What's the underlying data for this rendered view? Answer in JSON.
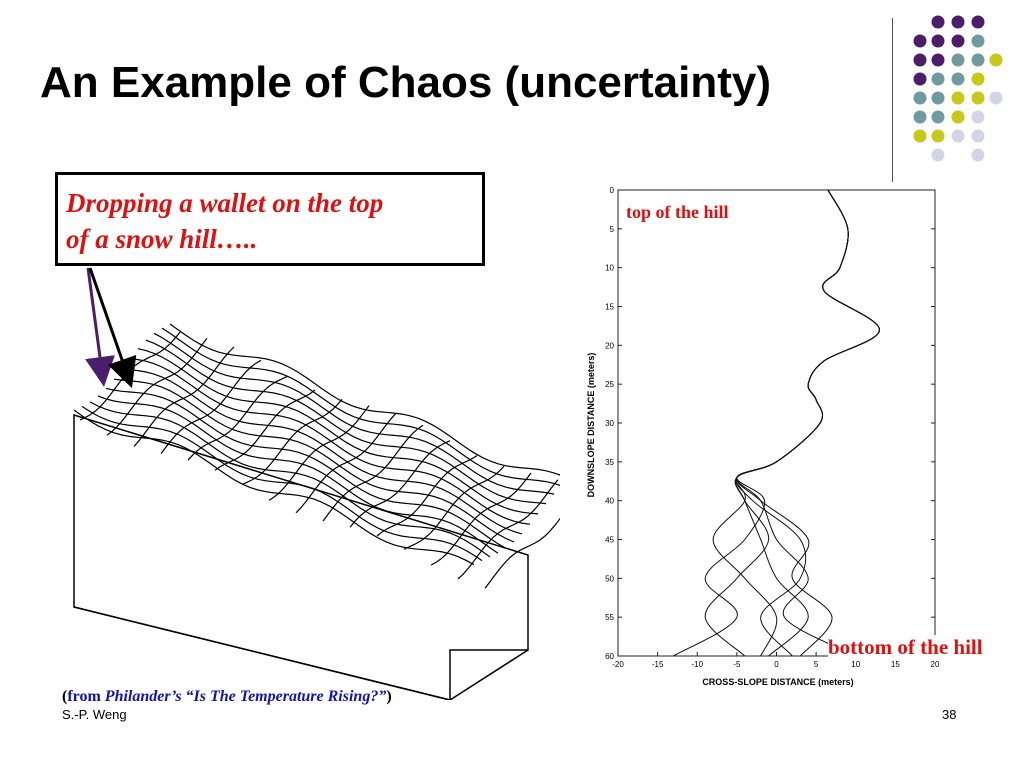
{
  "slide": {
    "title": "An Example of Chaos (uncertainty)",
    "callout_line1": "Dropping a wallet on the top",
    "callout_line2": "of a snow hill…..",
    "source_open": "(",
    "source_from": "from ",
    "source_work": "Philander’s “Is The Temperature Rising?”",
    "source_close": ")",
    "footer_author": "S.-P. Weng",
    "page_number": "38"
  },
  "colors": {
    "purple": "#4b1d6b",
    "teal": "#6f9aa0",
    "yellow": "#c8c818",
    "lavender": "#d4d4e6",
    "accent_red": "#e01010",
    "source_blue": "#1010c0"
  },
  "chart_data": {
    "type": "line",
    "xlabel": "CROSS-SLOPE DISTANCE (meters)",
    "ylabel": "DOWNSLOPE DISTANCE (meters)",
    "xlim": [
      -20,
      20
    ],
    "ylim": [
      60,
      0
    ],
    "x_ticks": [
      -20,
      -15,
      -10,
      -5,
      0,
      5,
      10,
      15,
      20
    ],
    "y_ticks": [
      0,
      5,
      10,
      15,
      20,
      25,
      30,
      35,
      40,
      45,
      50,
      55,
      60
    ],
    "annotations": [
      "top of the hill",
      "bottom of the hill"
    ],
    "series": [
      {
        "values": [
          [
            6.5,
            0
          ],
          [
            9,
            5
          ],
          [
            8,
            10
          ],
          [
            6,
            13
          ],
          [
            13,
            18
          ],
          [
            6,
            22
          ],
          [
            4,
            25
          ],
          [
            5,
            27
          ],
          [
            5.5,
            30
          ],
          [
            0,
            35
          ],
          [
            -5,
            37
          ],
          [
            -1.5,
            40
          ],
          [
            -4,
            45
          ],
          [
            -9,
            50
          ],
          [
            -5,
            55
          ],
          [
            -13,
            60
          ]
        ]
      },
      {
        "values": [
          [
            6.5,
            0
          ],
          [
            9,
            5
          ],
          [
            8,
            10
          ],
          [
            6,
            13
          ],
          [
            13,
            18
          ],
          [
            6,
            22
          ],
          [
            4,
            25
          ],
          [
            5,
            27
          ],
          [
            5.5,
            30
          ],
          [
            0,
            35
          ],
          [
            -5,
            37
          ],
          [
            -4,
            40
          ],
          [
            -1,
            45
          ],
          [
            -5,
            50
          ],
          [
            -9,
            55
          ],
          [
            -4,
            60
          ]
        ]
      },
      {
        "values": [
          [
            6.5,
            0
          ],
          [
            9,
            5
          ],
          [
            8,
            10
          ],
          [
            6,
            13
          ],
          [
            13,
            18
          ],
          [
            6,
            22
          ],
          [
            4,
            25
          ],
          [
            5,
            27
          ],
          [
            5.5,
            30
          ],
          [
            0,
            35
          ],
          [
            -5,
            37
          ],
          [
            -4,
            40
          ],
          [
            -8,
            45
          ],
          [
            -4,
            50
          ],
          [
            0,
            55
          ],
          [
            -2,
            60
          ]
        ]
      },
      {
        "values": [
          [
            6.5,
            0
          ],
          [
            9,
            5
          ],
          [
            8,
            10
          ],
          [
            6,
            13
          ],
          [
            13,
            18
          ],
          [
            6,
            22
          ],
          [
            4,
            25
          ],
          [
            5,
            27
          ],
          [
            5.5,
            30
          ],
          [
            0,
            35
          ],
          [
            -5,
            37
          ],
          [
            -3,
            40
          ],
          [
            3,
            45
          ],
          [
            3,
            50
          ],
          [
            -2,
            55
          ],
          [
            2,
            60
          ]
        ]
      },
      {
        "values": [
          [
            6.5,
            0
          ],
          [
            9,
            5
          ],
          [
            8,
            10
          ],
          [
            6,
            13
          ],
          [
            13,
            18
          ],
          [
            6,
            22
          ],
          [
            4,
            25
          ],
          [
            5,
            27
          ],
          [
            5.5,
            30
          ],
          [
            0,
            35
          ],
          [
            -5,
            37
          ],
          [
            -2,
            40
          ],
          [
            4,
            45
          ],
          [
            2,
            50
          ],
          [
            7,
            55
          ],
          [
            3,
            60
          ]
        ]
      },
      {
        "values": [
          [
            6.5,
            0
          ],
          [
            9,
            5
          ],
          [
            8,
            10
          ],
          [
            6,
            13
          ],
          [
            13,
            18
          ],
          [
            6,
            22
          ],
          [
            4,
            25
          ],
          [
            5,
            27
          ],
          [
            5.5,
            30
          ],
          [
            0,
            35
          ],
          [
            -5,
            37
          ],
          [
            -2,
            40
          ],
          [
            0,
            45
          ],
          [
            4,
            50
          ],
          [
            1,
            55
          ],
          [
            10,
            60
          ]
        ]
      },
      {
        "values": [
          [
            6.5,
            0
          ],
          [
            9,
            5
          ],
          [
            8,
            10
          ],
          [
            6,
            13
          ],
          [
            13,
            18
          ],
          [
            6,
            22
          ],
          [
            4,
            25
          ],
          [
            5,
            27
          ],
          [
            5.5,
            30
          ],
          [
            0,
            35
          ],
          [
            -5,
            37
          ],
          [
            -4,
            40
          ],
          [
            -2,
            45
          ],
          [
            0,
            50
          ],
          [
            4,
            55
          ],
          [
            -1,
            60
          ]
        ]
      }
    ]
  }
}
